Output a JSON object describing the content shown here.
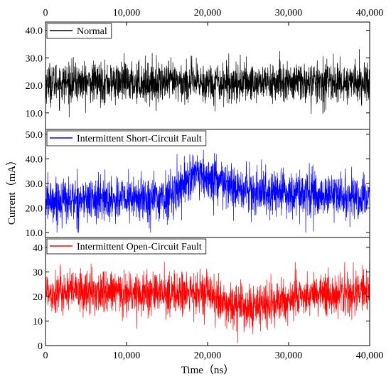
{
  "figure": {
    "ylabel": "Current（mA）",
    "xlabel": "Time（ns）"
  },
  "chart_data": [
    {
      "type": "line",
      "panel": "top",
      "legend": "Normal",
      "color": "#000000",
      "xlim": [
        0,
        40000
      ],
      "ylim": [
        4,
        43
      ],
      "yticks": [
        10,
        20,
        30,
        40
      ],
      "ytick_labels": [
        "10.0",
        "20.0",
        "30.0",
        "40.0"
      ],
      "xticks_top": [
        0,
        10000,
        20000,
        30000,
        40000
      ],
      "xtick_labels_top": [
        "0",
        "10,000",
        "20,000",
        "30,000",
        "40,000"
      ],
      "baseline": [
        [
          0,
          21
        ],
        [
          40000,
          21
        ]
      ],
      "noise_range": [
        8,
        35
      ],
      "points_sampled": 2000
    },
    {
      "type": "line",
      "panel": "middle",
      "legend": "Intermittent Short-Circuit Fault",
      "color": "#0000ff",
      "xlim": [
        0,
        40000
      ],
      "ylim": [
        8,
        52
      ],
      "yticks": [
        10,
        20,
        30,
        40,
        50
      ],
      "ytick_labels": [
        "10.0",
        "20.0",
        "30.0",
        "40.0",
        "50.0"
      ],
      "baseline": [
        [
          0,
          23
        ],
        [
          15000,
          24
        ],
        [
          18000,
          33
        ],
        [
          21000,
          31
        ],
        [
          24000,
          27
        ],
        [
          40000,
          24
        ]
      ],
      "noise_range": [
        10,
        44
      ],
      "points_sampled": 2000
    },
    {
      "type": "line",
      "panel": "bottom",
      "legend": "Intermittent Open-Circuit Fault",
      "color": "#ff0000",
      "xlim": [
        0,
        40000
      ],
      "ylim": [
        0,
        44
      ],
      "yticks": [
        0,
        10,
        20,
        30,
        40
      ],
      "ytick_labels": [
        "0",
        "10",
        "20",
        "30",
        "40"
      ],
      "xticks": [
        0,
        10000,
        20000,
        30000,
        40000
      ],
      "xtick_labels": [
        "0",
        "10,000",
        "20,000",
        "30,000",
        "40,000"
      ],
      "baseline": [
        [
          0,
          22
        ],
        [
          20000,
          21
        ],
        [
          22000,
          17
        ],
        [
          26000,
          15
        ],
        [
          29000,
          18
        ],
        [
          33000,
          21
        ],
        [
          40000,
          22
        ]
      ],
      "noise_range": [
        1,
        34
      ],
      "points_sampled": 2000
    }
  ]
}
